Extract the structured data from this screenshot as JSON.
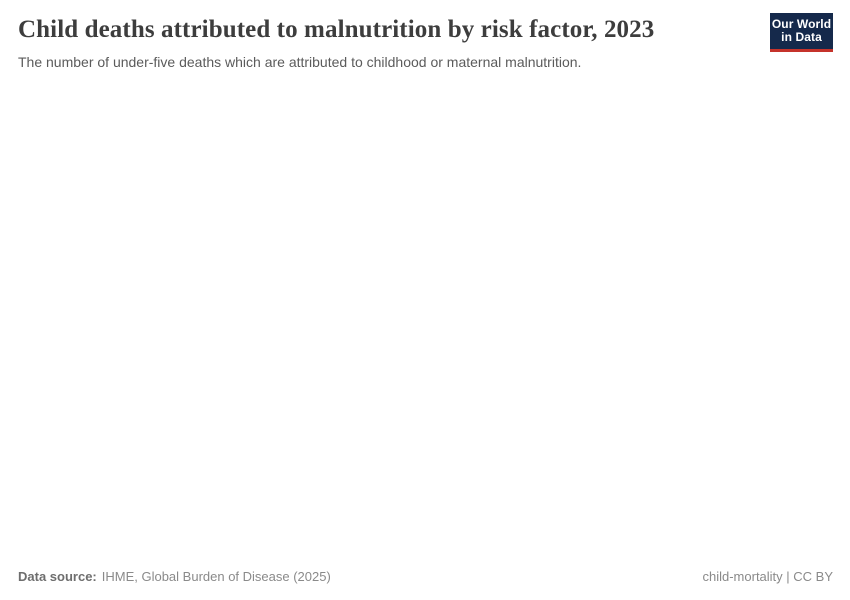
{
  "header": {
    "title": "Child deaths attributed to malnutrition by risk factor, 2023",
    "subtitle": "The number of under-five deaths which are attributed to childhood or maternal malnutrition.",
    "logo": {
      "line1": "Our World",
      "line2": "in Data",
      "bg_color": "#15294b",
      "accent_color": "#c5332b",
      "text_color": "#ffffff"
    }
  },
  "footer": {
    "source_label": "Data source:",
    "source_value": "IHME, Global Burden of Disease (2025)",
    "license": "child-mortality | CC BY"
  },
  "chart_data": {
    "type": "bar",
    "title": "Child deaths attributed to malnutrition by risk factor, 2023",
    "subtitle": "The number of under-five deaths which are attributed to childhood or maternal malnutrition.",
    "categories": [],
    "series": [],
    "note": "Plot area is rendered blank in the screenshot — no axes, gridlines, or data points are visible."
  },
  "colors": {
    "background": "#ffffff",
    "title_text": "#3d3d3d",
    "subtitle_text": "#5b5b5b",
    "footer_text": "#8a8a8a"
  }
}
